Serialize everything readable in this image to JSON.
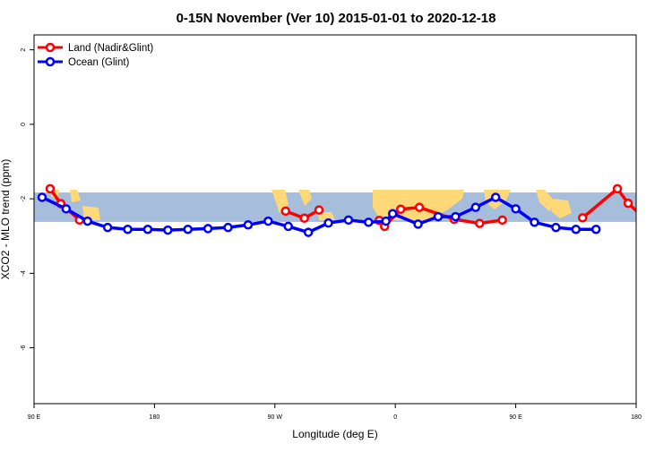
{
  "chart_data": {
    "type": "line",
    "title": "0-15N November (Ver 10)   2015-01-01 to 2020-12-18",
    "xlabel": "Longitude (deg E)",
    "ylabel": "XCO2 - MLO trend (ppm)",
    "xlim": [
      90,
      540
    ],
    "ylim": [
      -7.5,
      2.4
    ],
    "x_ticks": [
      {
        "value": 90,
        "label": "90 E"
      },
      {
        "value": 180,
        "label": "180"
      },
      {
        "value": 270,
        "label": "90 W"
      },
      {
        "value": 360,
        "label": "0"
      },
      {
        "value": 450,
        "label": "90 E"
      },
      {
        "value": 540,
        "label": "180"
      }
    ],
    "y_ticks": [
      {
        "value": 2,
        "label": "2"
      },
      {
        "value": 0,
        "label": "0"
      },
      {
        "value": -2,
        "label": "-2"
      },
      {
        "value": -4,
        "label": "-4"
      },
      {
        "value": -6,
        "label": "-6"
      }
    ],
    "grid": false,
    "legend_position": "top-left",
    "background_map_band": {
      "y_range": [
        -2.62,
        -1.83
      ],
      "ocean_color": "#a6bddb",
      "land_color": "#ffd878"
    },
    "series": [
      {
        "name": "Land (Nadir&Glint)",
        "color": "#ff0000",
        "segments": [
          [
            [
              102,
              -1.73
            ],
            [
              110,
              -2.13
            ],
            [
              124,
              -2.57
            ]
          ],
          [
            [
              278,
              -2.33
            ],
            [
              292,
              -2.52
            ],
            [
              303,
              -2.3
            ]
          ],
          [
            [
              348,
              -2.58
            ],
            [
              352,
              -2.74
            ],
            [
              364,
              -2.28
            ],
            [
              378,
              -2.23
            ],
            [
              404,
              -2.55
            ],
            [
              423,
              -2.66
            ],
            [
              440,
              -2.57
            ]
          ],
          [
            [
              500,
              -2.51
            ],
            [
              526,
              -1.73
            ],
            [
              534,
              -2.12
            ],
            [
              548,
              -2.58
            ]
          ]
        ]
      },
      {
        "name": "Ocean (Glint)",
        "color": "#0000ff",
        "segments": [
          [
            [
              96,
              -1.96
            ],
            [
              114,
              -2.27
            ],
            [
              130,
              -2.6
            ],
            [
              145,
              -2.77
            ],
            [
              160,
              -2.82
            ],
            [
              175,
              -2.82
            ],
            [
              190,
              -2.84
            ],
            [
              205,
              -2.82
            ],
            [
              220,
              -2.8
            ],
            [
              235,
              -2.77
            ],
            [
              250,
              -2.7
            ],
            [
              265,
              -2.6
            ],
            [
              280,
              -2.74
            ],
            [
              295,
              -2.9
            ],
            [
              310,
              -2.65
            ],
            [
              325,
              -2.57
            ],
            [
              340,
              -2.63
            ],
            [
              353,
              -2.6
            ],
            [
              358,
              -2.4
            ],
            [
              377,
              -2.68
            ],
            [
              392,
              -2.48
            ],
            [
              405,
              -2.48
            ],
            [
              420,
              -2.23
            ],
            [
              435,
              -1.96
            ],
            [
              450,
              -2.27
            ],
            [
              464,
              -2.63
            ],
            [
              480,
              -2.77
            ],
            [
              495,
              -2.82
            ],
            [
              510,
              -2.82
            ]
          ]
        ]
      }
    ]
  }
}
